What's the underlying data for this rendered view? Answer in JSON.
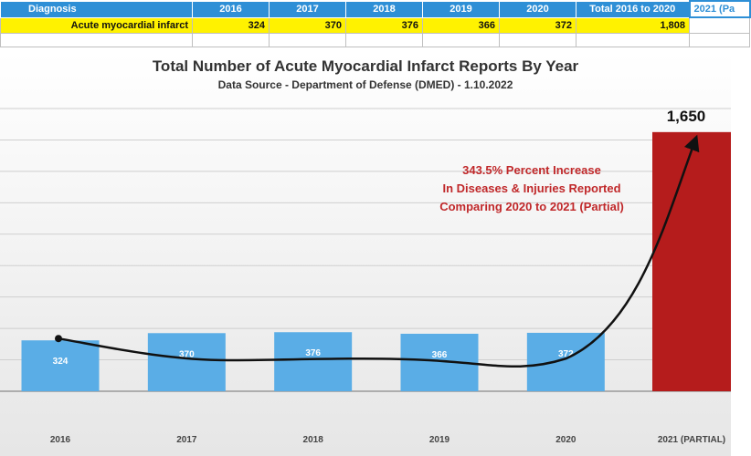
{
  "table": {
    "headers": [
      "Diagnosis",
      "2016",
      "2017",
      "2018",
      "2019",
      "2020",
      "Total 2016 to 2020",
      "2021 (Pa"
    ],
    "row": [
      "Acute myocardial infarct",
      "324",
      "370",
      "376",
      "366",
      "372",
      "1,808",
      ""
    ]
  },
  "colors": {
    "bar": "#5aade6",
    "highlight_bar": "#b51c1c",
    "annotation": "#c0282a",
    "header": "#2e8fd6",
    "row": "#fff200"
  },
  "annotation": {
    "line1": "343.5% Percent Increase",
    "line2": "In Diseases & Injuries Reported",
    "line3": "Comparing 2020 to 2021 (Partial)"
  },
  "chart_data": {
    "type": "bar",
    "title": "Total Number of Acute Myocardial Infarct Reports By Year",
    "subtitle": "Data Source - Department of Defense (DMED) - 1.10.2022",
    "categories": [
      "2016",
      "2017",
      "2018",
      "2019",
      "2020",
      "2021 (PARTIAL)"
    ],
    "values": [
      324,
      370,
      376,
      366,
      372,
      1650
    ],
    "data_labels": [
      "324",
      "370",
      "376",
      "366",
      "372",
      "1,650"
    ],
    "highlight_index": 5,
    "ylim": [
      0,
      1800
    ],
    "grid": true,
    "legend": "none",
    "trend_arrow": true
  }
}
